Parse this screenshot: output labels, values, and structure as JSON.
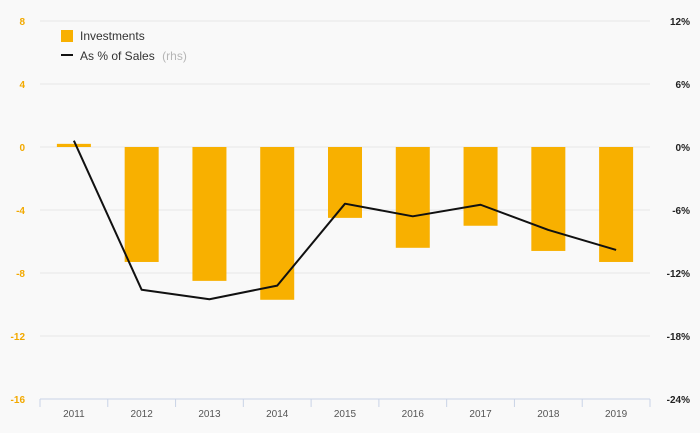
{
  "chart_data": {
    "type": "bar",
    "categories": [
      "2011",
      "2012",
      "2013",
      "2014",
      "2015",
      "2016",
      "2017",
      "2018",
      "2019"
    ],
    "series": [
      {
        "name": "Investments",
        "type": "bar",
        "axis": "left",
        "color": "#f8b000",
        "values": [
          0.2,
          -7.3,
          -8.5,
          -9.7,
          -4.5,
          -6.4,
          -5.0,
          -6.6,
          -7.3
        ]
      },
      {
        "name": "As % of Sales",
        "name_suffix": "(rhs)",
        "type": "line",
        "axis": "right",
        "color": "#111111",
        "values": [
          0.6,
          -13.6,
          -14.5,
          -13.2,
          -5.4,
          -6.6,
          -5.5,
          -7.9,
          -9.8
        ]
      }
    ],
    "y_left": {
      "ticks": [
        "8",
        "4",
        "0",
        "-4",
        "-8",
        "-12",
        "-16"
      ],
      "ylim": [
        -16,
        8
      ]
    },
    "y_right": {
      "ticks": [
        "12%",
        "6%",
        "0%",
        "-6%",
        "-12%",
        "-18%",
        "-24%"
      ],
      "ylim": [
        -24,
        12
      ]
    },
    "legend_position": "top-left",
    "grid": true
  }
}
